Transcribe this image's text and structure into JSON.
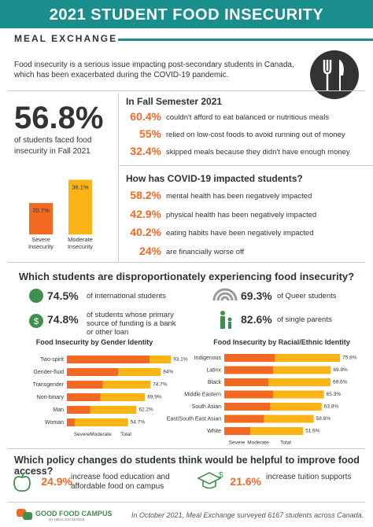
{
  "header": {
    "title": "2021 STUDENT FOOD INSECURITY",
    "brand": "MEAL EXCHANGE"
  },
  "intro": "Food insecurity is a serious issue impacting post-secondary students in Canada, which has been exacerbated during the COVID-19 pandemic.",
  "headline": {
    "value": "56.8%",
    "text": "of students faced food insecurity in Fall 2021",
    "chart": {
      "type": "bar",
      "categories": [
        "Severe Insecurity",
        "Moderate Insecurity"
      ],
      "values": [
        20.7,
        36.1
      ],
      "value_labels": [
        "20.7%",
        "36.1%"
      ],
      "colors": [
        "#f26a21",
        "#fbb416"
      ],
      "ylim": [
        0,
        40
      ]
    }
  },
  "fall": {
    "title": "In Fall Semester 2021",
    "items": [
      {
        "value": "60.4%",
        "text": "couldn't afford to eat balanced or nutritious meals"
      },
      {
        "value": "55%",
        "text": "relied on low-cost foods to avoid running out of money"
      },
      {
        "value": "32.4%",
        "text": "skipped meals because they didn't have enough money"
      }
    ]
  },
  "covid": {
    "title": "How has COVID-19 impacted students?",
    "items": [
      {
        "value": "58.2%",
        "text": "mental health has been negatively impacted"
      },
      {
        "value": "42.9%",
        "text": "physical health has been negatively impacted"
      },
      {
        "value": "40.2%",
        "text": "eating habits have been negatively impacted"
      },
      {
        "value": "24%",
        "text": "are financially worse off"
      }
    ]
  },
  "groups": {
    "title": "Which students are disproportionately experiencing food insecurity?",
    "items": [
      {
        "value": "74.5%",
        "text": "of international students"
      },
      {
        "value": "69.3%",
        "text": "of Queer students"
      },
      {
        "value": "74.8%",
        "text": "of students whose primary source of funding is a bank or other loan"
      },
      {
        "value": "82.6%",
        "text": "of single parents"
      }
    ]
  },
  "gender_chart": {
    "type": "stacked-bar",
    "title": "Food Insecurity by Gender Identity",
    "categories": [
      "Two-spirit",
      "Gender-fluid",
      "Transgender",
      "Non-binary",
      "Man",
      "Woman"
    ],
    "series": [
      {
        "name": "Severe",
        "color": "#f26a21",
        "values": [
          74,
          46,
          32,
          30,
          21,
          7
        ]
      },
      {
        "name": "Moderate",
        "color": "#fbb416",
        "values": [
          19.1,
          38,
          42.7,
          39.9,
          41.2,
          47.7
        ]
      }
    ],
    "totals": {
      "name": "Total",
      "values": [
        93.1,
        84,
        74.7,
        69.9,
        62.2,
        54.7
      ],
      "value_labels": [
        "93.1%",
        "84%",
        "74.7%",
        "69.9%",
        "62.2%",
        "54.7%"
      ]
    },
    "xlim": [
      0,
      100
    ]
  },
  "race_chart": {
    "type": "stacked-bar",
    "title": "Food Insecurity by Racial/Ethnic Identity",
    "categories": [
      "Indigenous",
      "Latinx",
      "Black",
      "Middle Eastern",
      "South Asian",
      "East/South East Asian",
      "White"
    ],
    "series": [
      {
        "name": "Severe",
        "color": "#f26a21",
        "values": [
          33,
          32,
          29,
          32,
          30,
          26,
          17
        ]
      },
      {
        "name": "Moderate",
        "color": "#fbb416",
        "values": [
          42.8,
          37.8,
          40.6,
          33.3,
          33.8,
          32.6,
          34.6
        ]
      }
    ],
    "totals": {
      "name": "Total",
      "values": [
        75.8,
        69.8,
        69.6,
        65.3,
        63.8,
        58.6,
        51.6
      ],
      "value_labels": [
        "75.8%",
        "69.8%",
        "69.6%",
        "65.3%",
        "63.8%",
        "58.6%",
        "51.6%"
      ]
    },
    "xlim": [
      0,
      100
    ]
  },
  "policy": {
    "title": "Which policy changes do students think would be helpful to improve food access?",
    "items": [
      {
        "value": "24.9%",
        "text": "increase food education and affordable food on campus"
      },
      {
        "value": "21.6%",
        "text": "increase tuition supports"
      }
    ]
  },
  "footer": {
    "logo": "GOOD FOOD CAMPUS",
    "logo_sub": "BY MEAL EXCHANGE",
    "note": "In October 2021, Meal Exchange surveyed 6167 students across Canada."
  }
}
